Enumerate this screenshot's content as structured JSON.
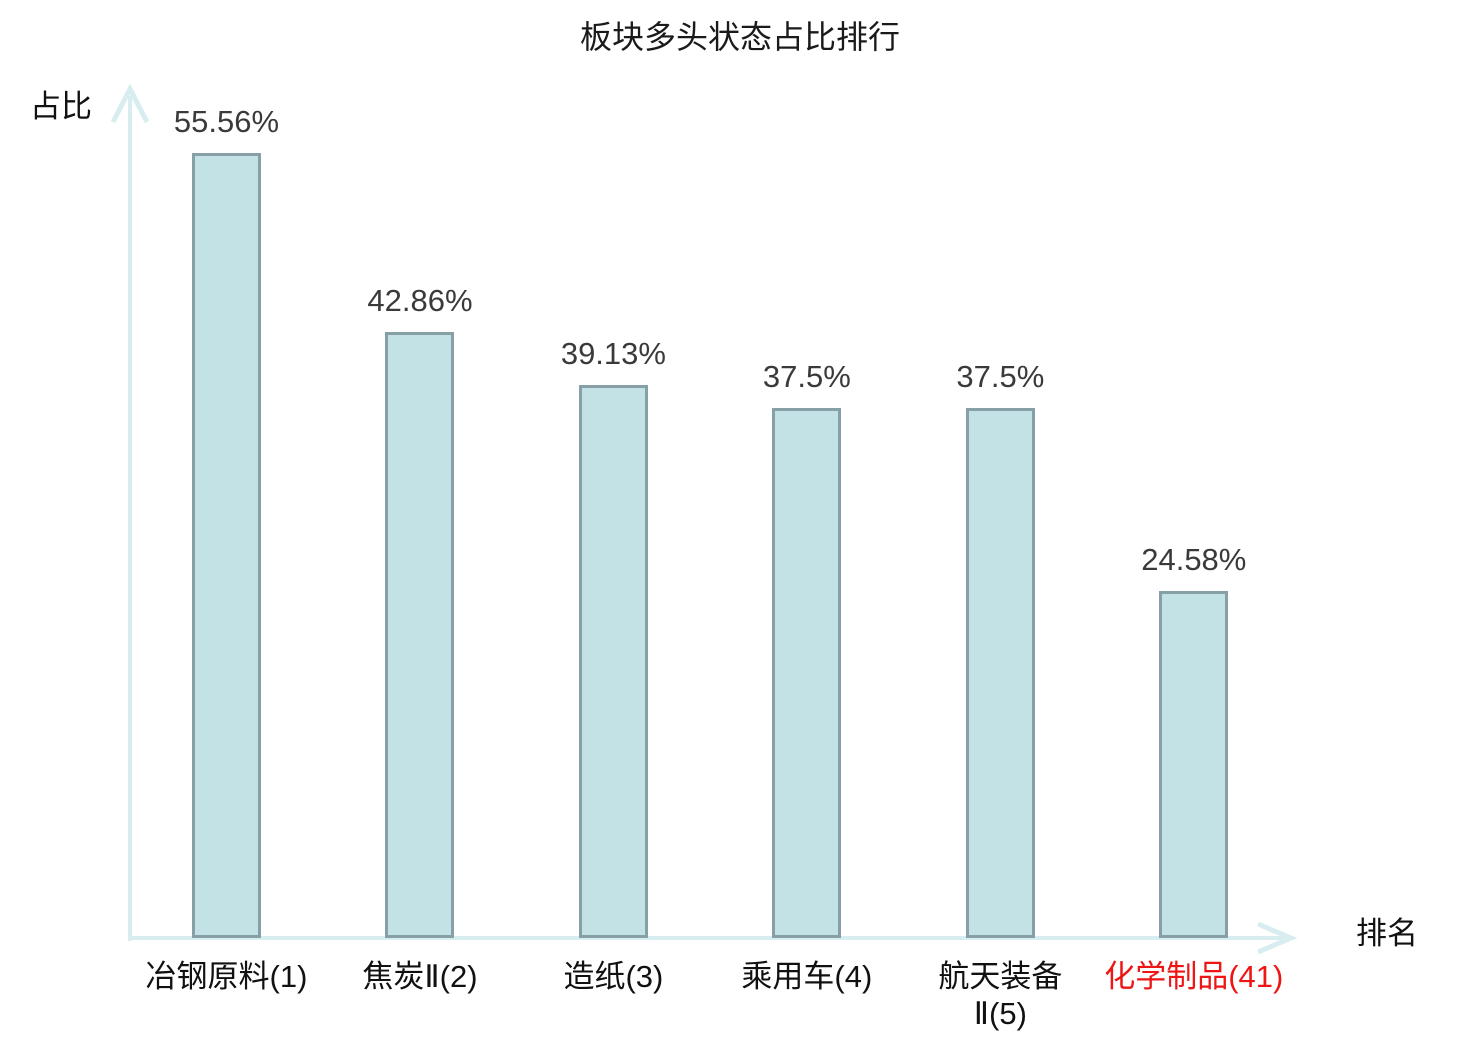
{
  "page": {
    "background_color": "#ffffff"
  },
  "chart_data": {
    "type": "bar",
    "title": "板块多头状态占比排行",
    "xlabel": "排名",
    "ylabel": "占比",
    "categories": [
      "冶钢原料(1)",
      "焦炭Ⅱ(2)",
      "造纸(3)",
      "乘用车(4)",
      "航天装备\nⅡ(5)",
      "化学制品(41)"
    ],
    "values": [
      55.56,
      42.86,
      39.13,
      37.5,
      37.5,
      24.58
    ],
    "value_labels": [
      "55.56%",
      "42.86%",
      "39.13%",
      "37.5%",
      "37.5%",
      "24.58%"
    ],
    "highlight_index": 5,
    "ylim": [
      0,
      60
    ],
    "grid": false,
    "legend": null,
    "colors": {
      "bar_fill": "#c2e2e5",
      "bar_border": "#87a0a8",
      "axis": "#d8edef",
      "value_text": "#3a3a3a",
      "category_text": "#111111",
      "highlight_text": "#ee1515"
    }
  }
}
